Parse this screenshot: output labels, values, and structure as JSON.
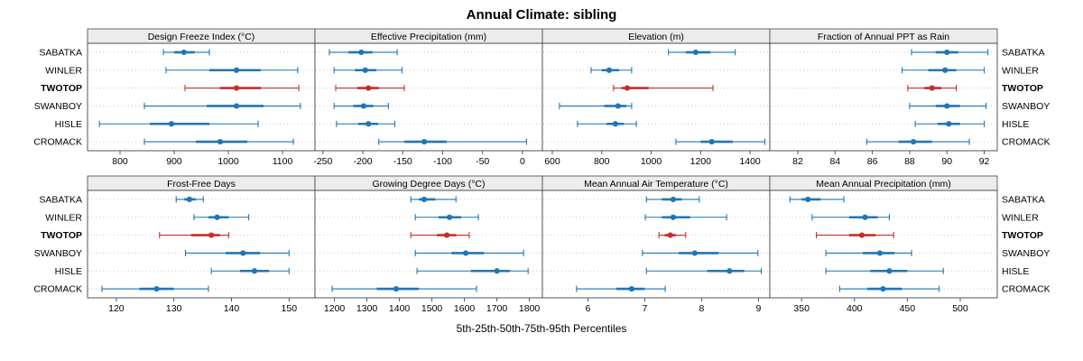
{
  "title": "Annual Climate: sibling",
  "caption": "5th-25th-50th-75th-95th Percentiles",
  "sites": [
    "SABATKA",
    "WINLER",
    "TWOTOP",
    "SWANBOY",
    "HISLE",
    "CROMACK"
  ],
  "highlight_site": "TWOTOP",
  "colors": {
    "default": "#2076b4",
    "highlight": "#c22f2e",
    "strip_bg": "#ececec",
    "grid": "#c9c9c9",
    "border": "#444444",
    "text": "#000000"
  },
  "chart_data": {
    "type": "dotplot-percentiles",
    "percentiles": [
      5,
      25,
      50,
      75,
      95
    ],
    "legend_position": "none",
    "grid": "dotted-horizontal",
    "panels": [
      {
        "title": "Design Freeze Index (°C)",
        "row": 0,
        "col": 0,
        "xlim": [
          740,
          1160
        ],
        "ticks": [
          800,
          900,
          1000,
          1100
        ],
        "series": [
          [
            880,
            900,
            918,
            938,
            965
          ],
          [
            885,
            965,
            1015,
            1060,
            1128
          ],
          [
            920,
            985,
            1015,
            1060,
            1130
          ],
          [
            845,
            960,
            1015,
            1065,
            1133
          ],
          [
            762,
            855,
            895,
            965,
            1055
          ],
          [
            845,
            940,
            985,
            1035,
            1120
          ]
        ]
      },
      {
        "title": "Effective Precipitation (mm)",
        "row": 0,
        "col": 1,
        "xlim": [
          -260,
          25
        ],
        "ticks": [
          -250,
          -200,
          -150,
          -100,
          -50,
          0
        ],
        "series": [
          [
            -242,
            -218,
            -202,
            -188,
            -157
          ],
          [
            -236,
            -210,
            -197,
            -183,
            -151
          ],
          [
            -234,
            -207,
            -193,
            -180,
            -148
          ],
          [
            -236,
            -212,
            -199,
            -187,
            -168
          ],
          [
            -233,
            -206,
            -193,
            -181,
            -160
          ],
          [
            -180,
            -148,
            -123,
            -95,
            5
          ]
        ]
      },
      {
        "title": "Elevation (m)",
        "row": 0,
        "col": 2,
        "xlim": [
          560,
          1480
        ],
        "ticks": [
          600,
          800,
          1000,
          1200,
          1400
        ],
        "series": [
          [
            1070,
            1140,
            1180,
            1240,
            1340
          ],
          [
            757,
            800,
            830,
            870,
            921
          ],
          [
            848,
            880,
            903,
            990,
            1250
          ],
          [
            629,
            810,
            866,
            900,
            921
          ],
          [
            702,
            820,
            855,
            890,
            940
          ],
          [
            1100,
            1200,
            1245,
            1330,
            1460
          ]
        ]
      },
      {
        "title": "Fraction of Annual PPT as Rain",
        "row": 0,
        "col": 3,
        "xlim": [
          80.5,
          92.7
        ],
        "ticks": [
          82,
          84,
          86,
          88,
          90,
          92
        ],
        "series": [
          [
            88.1,
            89.4,
            90.0,
            90.6,
            92.2
          ],
          [
            87.6,
            89.0,
            89.9,
            90.5,
            92.0
          ],
          [
            87.9,
            88.8,
            89.2,
            89.7,
            90.5
          ],
          [
            88.0,
            89.4,
            90.0,
            90.7,
            92.1
          ],
          [
            88.3,
            89.5,
            90.1,
            90.7,
            92.0
          ],
          [
            85.7,
            87.4,
            88.2,
            89.2,
            91.2
          ]
        ]
      },
      {
        "title": "Frost-Free Days",
        "row": 1,
        "col": 0,
        "xlim": [
          115,
          154.5
        ],
        "ticks": [
          120,
          130,
          140,
          150
        ],
        "series": [
          [
            130.4,
            131.8,
            132.7,
            133.8,
            135.1
          ],
          [
            133.5,
            136,
            137.5,
            139.5,
            143
          ],
          [
            127.5,
            133,
            136.5,
            138,
            139.5
          ],
          [
            132,
            139,
            142,
            145,
            150
          ],
          [
            136.5,
            141.5,
            144,
            146.5,
            150
          ],
          [
            117.5,
            124,
            127,
            130,
            136
          ]
        ]
      },
      {
        "title": "Growing Degree Days (°C)",
        "row": 1,
        "col": 1,
        "xlim": [
          1140,
          1840
        ],
        "ticks": [
          1200,
          1300,
          1400,
          1500,
          1600,
          1700,
          1800
        ],
        "series": [
          [
            1435,
            1460,
            1476,
            1510,
            1574
          ],
          [
            1449,
            1520,
            1554,
            1590,
            1643
          ],
          [
            1435,
            1515,
            1546,
            1575,
            1615
          ],
          [
            1449,
            1560,
            1604,
            1660,
            1782
          ],
          [
            1454,
            1620,
            1700,
            1740,
            1796
          ],
          [
            1193,
            1330,
            1390,
            1460,
            1637
          ]
        ]
      },
      {
        "title": "Mean Annual Air Temperature (°C)",
        "row": 1,
        "col": 2,
        "xlim": [
          5.2,
          9.2
        ],
        "ticks": [
          6,
          7,
          8,
          9
        ],
        "series": [
          [
            7.03,
            7.3,
            7.5,
            7.65,
            7.96
          ],
          [
            7.01,
            7.3,
            7.5,
            7.8,
            8.44
          ],
          [
            7.25,
            7.35,
            7.45,
            7.55,
            7.72
          ],
          [
            6.96,
            7.6,
            7.88,
            8.3,
            8.99
          ],
          [
            7.03,
            8.1,
            8.49,
            8.75,
            9.05
          ],
          [
            5.8,
            6.5,
            6.77,
            7.0,
            7.36
          ]
        ]
      },
      {
        "title": "Mean Annual Precipitation (mm)",
        "row": 1,
        "col": 3,
        "xlim": [
          320,
          535
        ],
        "ticks": [
          350,
          400,
          450,
          500
        ],
        "series": [
          [
            339,
            350,
            356,
            368,
            390
          ],
          [
            360,
            395,
            410,
            422,
            433
          ],
          [
            364,
            395,
            407,
            420,
            437
          ],
          [
            373,
            408,
            424,
            438,
            454
          ],
          [
            373,
            415,
            433,
            450,
            484
          ],
          [
            386,
            412,
            427,
            445,
            480
          ]
        ]
      }
    ]
  }
}
